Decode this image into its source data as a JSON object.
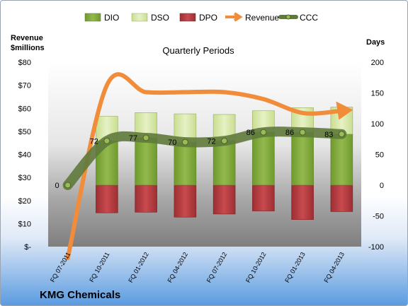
{
  "chart_data": {
    "type": "bar",
    "title": "Quarterly Periods",
    "company": "KMG Chemicals",
    "left_axis_title": [
      "Revenue",
      "$millions"
    ],
    "right_axis_title": "Days",
    "categories": [
      "FQ 07-2011",
      "FQ 10-2011",
      "FQ 01-2012",
      "FQ 04-2012",
      "FQ 07-2012",
      "FQ 10-2012",
      "FQ 01-2013",
      "FQ 04-2013"
    ],
    "left_axis": {
      "min": 0,
      "max": 80,
      "step": 10,
      "labels": [
        "$-",
        "$10",
        "$20",
        "$30",
        "$40",
        "$50",
        "$60",
        "$70",
        "$80"
      ]
    },
    "right_axis": {
      "min": -100,
      "max": 200,
      "step": 50,
      "labels": [
        "-100",
        "-50",
        "0",
        "50",
        "100",
        "150",
        "200"
      ]
    },
    "legend": [
      "DIO",
      "DSO",
      "DPO",
      "Revenue",
      "CCC"
    ],
    "legend_position": "top",
    "series": [
      {
        "name": "DIO",
        "type": "stacked-bar",
        "axis": "right",
        "color": "#7fa63a",
        "values": [
          0,
          72,
          77,
          70,
          72,
          86,
          86,
          83
        ]
      },
      {
        "name": "DSO",
        "type": "stacked-bar",
        "axis": "right",
        "color": "#d6e8a8",
        "values": [
          0,
          40,
          41,
          46,
          43,
          35,
          40,
          44
        ]
      },
      {
        "name": "DPO",
        "type": "negative-bar",
        "axis": "right",
        "color": "#b5383c",
        "values": [
          0,
          -45,
          -44,
          -52,
          -47,
          -42,
          -56,
          -43
        ]
      },
      {
        "name": "Revenue",
        "type": "line",
        "axis": "left",
        "color": "#f08c3a",
        "values": [
          -5,
          70,
          67,
          67,
          67,
          64,
          58,
          59
        ]
      },
      {
        "name": "CCC",
        "type": "line",
        "axis": "right",
        "color": "#5f7a3c",
        "values": [
          0,
          72,
          77,
          70,
          72,
          86,
          86,
          83
        ],
        "labels": [
          "0",
          "72",
          "77",
          "70",
          "72",
          "86",
          "86",
          "83"
        ]
      }
    ],
    "grid": false
  }
}
